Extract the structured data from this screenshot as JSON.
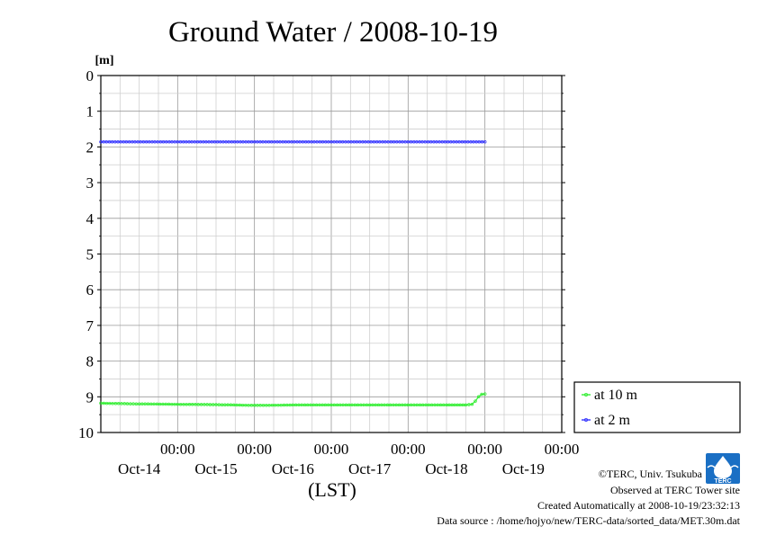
{
  "chart_data": {
    "type": "line",
    "title": "Ground Water / 2008-10-19",
    "ylabel": "[m]",
    "xlabel": "(LST)",
    "ylim": [
      0,
      10
    ],
    "y_inverted": true,
    "y_ticks": [
      0,
      1,
      2,
      3,
      4,
      5,
      6,
      7,
      8,
      9,
      10
    ],
    "x_unit": "days",
    "xlim": [
      "2008-10-13 00:00",
      "2008-10-19 00:00"
    ],
    "x_ticks": [
      {
        "time": "00:00",
        "date": "Oct-14"
      },
      {
        "time": "00:00",
        "date": "Oct-15"
      },
      {
        "time": "00:00",
        "date": "Oct-16"
      },
      {
        "time": "00:00",
        "date": "Oct-17"
      },
      {
        "time": "00:00",
        "date": "Oct-18"
      },
      {
        "time": "00:00",
        "date": "Oct-19"
      }
    ],
    "grid": true,
    "legend_position": "right",
    "series": [
      {
        "name": "at 10 m",
        "color": "#33ee33",
        "x": [
          "2008-10-13 00:00",
          "2008-10-13 12:00",
          "2008-10-14 00:00",
          "2008-10-14 12:00",
          "2008-10-15 00:00",
          "2008-10-15 12:00",
          "2008-10-16 00:00",
          "2008-10-16 12:00",
          "2008-10-17 00:00",
          "2008-10-17 12:00",
          "2008-10-17 18:00",
          "2008-10-17 20:00",
          "2008-10-17 21:00",
          "2008-10-17 22:00",
          "2008-10-17 23:00",
          "2008-10-18 00:00"
        ],
        "values": [
          9.18,
          9.2,
          9.21,
          9.22,
          9.24,
          9.23,
          9.23,
          9.23,
          9.23,
          9.23,
          9.23,
          9.21,
          9.12,
          9.0,
          8.93,
          8.92
        ]
      },
      {
        "name": "at 2 m",
        "color": "#3333ff",
        "x": [
          "2008-10-13 00:00",
          "2008-10-14 00:00",
          "2008-10-15 00:00",
          "2008-10-16 00:00",
          "2008-10-17 00:00",
          "2008-10-18 00:00"
        ],
        "values": [
          1.86,
          1.86,
          1.86,
          1.86,
          1.86,
          1.86
        ]
      }
    ]
  },
  "credits": {
    "line1": "©TERC, Univ. Tsukuba",
    "line2": "Observed at TERC Tower site",
    "line3": "Created Automatically at 2008-10-19/23:32:13",
    "line4": "Data source : /home/hojyo/new/TERC-data/sorted_data/MET.30m.dat",
    "logo_text": "TERC"
  }
}
